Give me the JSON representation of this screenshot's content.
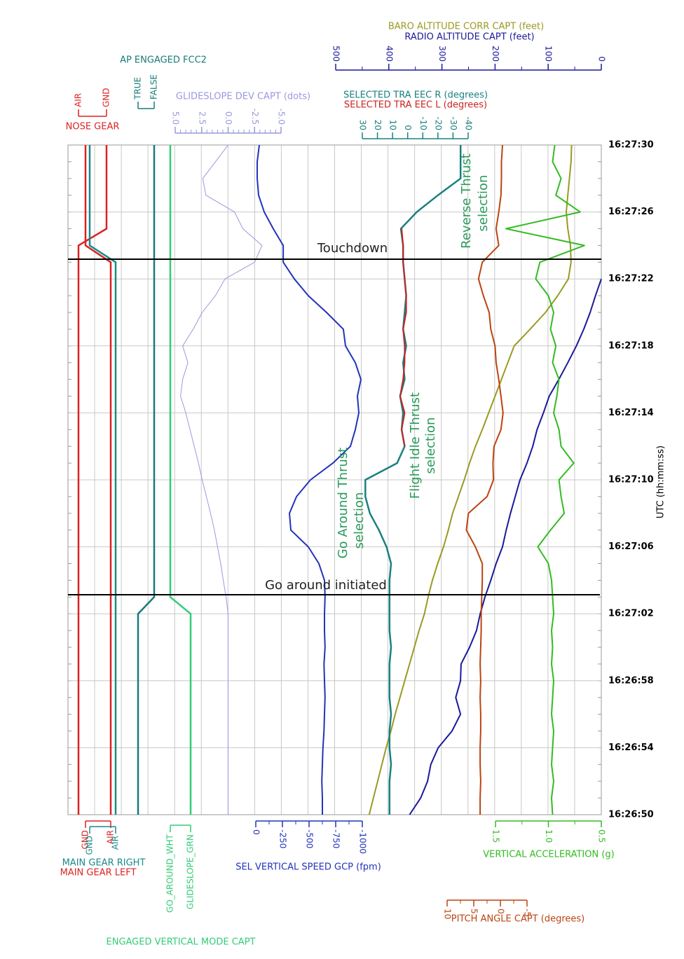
{
  "chart_data": {
    "type": "line",
    "x": [
      "16:26:50",
      "16:26:51",
      "16:26:52",
      "16:26:53",
      "16:26:54",
      "16:26:55",
      "16:26:56",
      "16:26:57",
      "16:26:58",
      "16:26:59",
      "16:27:00",
      "16:27:01",
      "16:27:02",
      "16:27:03",
      "16:27:04",
      "16:27:05",
      "16:27:06",
      "16:27:07",
      "16:27:08",
      "16:27:09",
      "16:27:10",
      "16:27:11",
      "16:27:12",
      "16:27:13",
      "16:27:14",
      "16:27:15",
      "16:27:16",
      "16:27:17",
      "16:27:18",
      "16:27:19",
      "16:27:20",
      "16:27:21",
      "16:27:22",
      "16:27:23",
      "16:27:24",
      "16:27:25",
      "16:27:26",
      "16:27:27",
      "16:27:28",
      "16:27:29",
      "16:27:30"
    ],
    "xlim": [
      "16:26:50",
      "16:27:30"
    ],
    "xticks": [
      "16:26:50",
      "16:26:54",
      "16:26:58",
      "16:27:02",
      "16:27:06",
      "16:27:10",
      "16:27:14",
      "16:27:18",
      "16:27:22",
      "16:27:26",
      "16:27:30"
    ],
    "xlabel": "UTC (hh:mm:ss)",
    "annotations": [
      "Touchdown",
      "Go around initiated",
      [
        "Go Around Thrust",
        "selection"
      ],
      [
        "Flight Idle Thrust",
        "selection"
      ],
      [
        "Reverse Thrust",
        "selection"
      ]
    ],
    "series": [
      {
        "name": "BARO ALTITUDE CORR CAPT (feet)",
        "color": "#9a9a22",
        "values": [
          437,
          429,
          421,
          413,
          405,
          396,
          388,
          379,
          370,
          361,
          352,
          343,
          333,
          326,
          318,
          308,
          297,
          288,
          280,
          269,
          258,
          248,
          237,
          224,
          212,
          200,
          188,
          176,
          164,
          134,
          105,
          82,
          62,
          57,
          58,
          63,
          66,
          63,
          60,
          57,
          56
        ]
      },
      {
        "name": "RADIO ALTITUDE CAPT (feet)",
        "color": "#1a1a99",
        "lim": [
          500,
          0
        ],
        "ticks": [
          500,
          400,
          300,
          200,
          100,
          0
        ],
        "values": [
          361,
          340,
          327,
          321,
          307,
          281,
          265,
          274,
          265,
          264,
          248,
          235,
          228,
          219,
          208,
          198,
          186,
          179,
          171,
          162,
          153,
          140,
          129,
          121,
          109,
          98,
          80,
          63,
          47,
          33,
          21,
          11,
          0,
          null,
          null,
          null,
          null,
          null,
          null,
          null,
          null
        ]
      },
      {
        "name": "SELECTED TRA EEC R (degrees)",
        "color": "#1a8080",
        "lim": [
          30,
          -40
        ],
        "ticks": [
          30,
          20,
          10,
          0,
          -10,
          -20,
          -30,
          -40
        ],
        "values": [
          12,
          12,
          12,
          11,
          12,
          12,
          11,
          12,
          12,
          12,
          11,
          12,
          12,
          12,
          12,
          11,
          14,
          19,
          25,
          28,
          28,
          7,
          2,
          4,
          3,
          5,
          2,
          3,
          1,
          3,
          2,
          1,
          2,
          3,
          3,
          4.5,
          -6,
          -20,
          -35,
          -35,
          -35
        ]
      },
      {
        "name": "SELECTED TRA EEC L (degrees)",
        "color": "#cc2222",
        "values": [
          null,
          null,
          null,
          null,
          null,
          null,
          null,
          null,
          null,
          null,
          null,
          null,
          null,
          null,
          null,
          null,
          null,
          null,
          null,
          null,
          null,
          null,
          2,
          4,
          2,
          5,
          3,
          2,
          2,
          3,
          1,
          1,
          2,
          3,
          3,
          4,
          null,
          null,
          null,
          null,
          null
        ]
      },
      {
        "name": "GLIDESLOPE DEV CAPT (dots)",
        "color": "#9999dd",
        "lim": [
          5,
          -5
        ],
        "ticks": [
          {
            "value": 5,
            "label": "5.0"
          },
          2.5,
          {
            "value": 0,
            "label": "0.0"
          },
          -2.5,
          {
            "value": -5,
            "label": "-5.0"
          }
        ],
        "values": [
          0,
          0,
          0,
          0,
          0,
          0,
          0,
          0,
          0,
          0,
          0,
          0,
          0,
          0.2,
          0.46,
          0.7,
          1,
          1.3,
          1.66,
          2.05,
          2.45,
          2.8,
          3.2,
          3.6,
          4,
          4.5,
          4.3,
          3.8,
          4.3,
          3.3,
          2.45,
          1.2,
          0.3,
          -2.5,
          -3.2,
          -1.4,
          -0.6,
          2.1,
          2.4,
          1.2,
          0
        ]
      },
      {
        "name": "SEL VERTICAL SPEED GCP (fpm)",
        "color": "#2233bb",
        "lim": [
          0,
          -1000
        ],
        "ticks": [
          0,
          -250,
          -500,
          -750,
          -1000
        ],
        "values": [
          -625,
          -625,
          -620,
          -625,
          -630,
          -640,
          -645,
          -650,
          -645,
          -640,
          -650,
          -645,
          -645,
          -650,
          -645,
          -592,
          -493,
          -329,
          -316,
          -382,
          -513,
          -724,
          -888,
          -934,
          -967,
          -954,
          -987,
          -934,
          -842,
          -822,
          -664,
          -493,
          -362,
          -257,
          -257,
          -164,
          -79,
          -26,
          -13,
          -13,
          -33
        ]
      },
      {
        "name": "VERTICAL ACCELERATION (g)",
        "color": "#33bb22",
        "lim": [
          1.5,
          0.5
        ],
        "ticks": [
          1.5,
          {
            "value": 1,
            "label": "1.0"
          },
          0.5
        ],
        "values": [
          0.96,
          0.97,
          0.95,
          0.97,
          0.96,
          0.95,
          0.97,
          0.96,
          0.95,
          0.97,
          0.96,
          0.97,
          0.95,
          0.96,
          0.97,
          1.0,
          1.1,
          0.98,
          0.85,
          0.88,
          0.9,
          0.76,
          0.88,
          0.9,
          0.95,
          0.92,
          0.9,
          0.96,
          0.93,
          0.98,
          0.95,
          1.0,
          1.12,
          1.08,
          0.66,
          1.4,
          0.7,
          0.93,
          0.88,
          0.96,
          0.94
        ]
      },
      {
        "name": "PITCH ANGLE CAPT (degrees)",
        "color": "#bb4411",
        "lim": [
          10,
          -5
        ],
        "ticks": [
          10,
          5,
          0,
          -5
        ],
        "values": [
          3.8,
          3.8,
          3.7,
          3.8,
          3.8,
          3.7,
          3.7,
          3.8,
          3.7,
          3.8,
          3.7,
          3.6,
          3.6,
          3.5,
          3.4,
          3.4,
          4.7,
          6.4,
          6.0,
          2.5,
          1.3,
          1.4,
          1.2,
          -0.1,
          -0.5,
          -0.1,
          0.3,
          0.8,
          1.0,
          1.8,
          2.1,
          3.2,
          4.1,
          3.4,
          0.3,
          0.8,
          0.3,
          -0.1,
          -0.2,
          -0.2,
          -0.4
        ]
      }
    ],
    "discrete": [
      {
        "name": "NOSE GEAR",
        "color": "#dd2222",
        "states": [
          "AIR",
          "GND"
        ],
        "values": [
          "AIR",
          "AIR",
          "AIR",
          "AIR",
          "AIR",
          "AIR",
          "AIR",
          "AIR",
          "AIR",
          "AIR",
          "AIR",
          "AIR",
          "AIR",
          "AIR",
          "AIR",
          "AIR",
          "AIR",
          "AIR",
          "AIR",
          "AIR",
          "AIR",
          "AIR",
          "AIR",
          "AIR",
          "AIR",
          "AIR",
          "AIR",
          "AIR",
          "AIR",
          "AIR",
          "AIR",
          "AIR",
          "AIR",
          "AIR",
          "AIR",
          "GND",
          "GND",
          "GND",
          "GND",
          "GND",
          "GND"
        ]
      },
      {
        "name": "MAIN GEAR LEFT",
        "color": "#dd2222",
        "states": [
          "GND",
          "AIR"
        ],
        "values": [
          "AIR",
          "AIR",
          "AIR",
          "AIR",
          "AIR",
          "AIR",
          "AIR",
          "AIR",
          "AIR",
          "AIR",
          "AIR",
          "AIR",
          "AIR",
          "AIR",
          "AIR",
          "AIR",
          "AIR",
          "AIR",
          "AIR",
          "AIR",
          "AIR",
          "AIR",
          "AIR",
          "AIR",
          "AIR",
          "AIR",
          "AIR",
          "AIR",
          "AIR",
          "AIR",
          "AIR",
          "AIR",
          "AIR",
          "AIR",
          "GND",
          "GND",
          "GND",
          "GND",
          "GND",
          "GND",
          "GND"
        ]
      },
      {
        "name": "MAIN GEAR RIGHT",
        "color": "#1a8a8a",
        "states": [
          "GND",
          "AIR"
        ],
        "values": [
          "AIR",
          "AIR",
          "AIR",
          "AIR",
          "AIR",
          "AIR",
          "AIR",
          "AIR",
          "AIR",
          "AIR",
          "AIR",
          "AIR",
          "AIR",
          "AIR",
          "AIR",
          "AIR",
          "AIR",
          "AIR",
          "AIR",
          "AIR",
          "AIR",
          "AIR",
          "AIR",
          "AIR",
          "AIR",
          "AIR",
          "AIR",
          "AIR",
          "AIR",
          "AIR",
          "AIR",
          "AIR",
          "AIR",
          "AIR",
          "GND",
          "GND",
          "GND",
          "GND",
          "GND",
          "GND",
          "GND"
        ]
      },
      {
        "name": "AP ENGAGED FCC2",
        "color": "#1a7a7a",
        "states": [
          "TRUE",
          "FALSE"
        ],
        "values": [
          "TRUE",
          "TRUE",
          "TRUE",
          "TRUE",
          "TRUE",
          "TRUE",
          "TRUE",
          "TRUE",
          "TRUE",
          "TRUE",
          "TRUE",
          "TRUE",
          "TRUE",
          "FALSE",
          "FALSE",
          "FALSE",
          "FALSE",
          "FALSE",
          "FALSE",
          "FALSE",
          "FALSE",
          "FALSE",
          "FALSE",
          "FALSE",
          "FALSE",
          "FALSE",
          "FALSE",
          "FALSE",
          "FALSE",
          "FALSE",
          "FALSE",
          "FALSE",
          "FALSE",
          "FALSE",
          "FALSE",
          "FALSE",
          "FALSE",
          "FALSE",
          "FALSE",
          "FALSE",
          "FALSE"
        ]
      },
      {
        "name": "ENGAGED VERTICAL MODE CAPT",
        "color": "#33cc77",
        "states": [
          "GO_AROUND_WHT",
          "GLIDESLOPE_GRN"
        ],
        "values": [
          "GLIDESLOPE_GRN",
          "GLIDESLOPE_GRN",
          "GLIDESLOPE_GRN",
          "GLIDESLOPE_GRN",
          "GLIDESLOPE_GRN",
          "GLIDESLOPE_GRN",
          "GLIDESLOPE_GRN",
          "GLIDESLOPE_GRN",
          "GLIDESLOPE_GRN",
          "GLIDESLOPE_GRN",
          "GLIDESLOPE_GRN",
          "GLIDESLOPE_GRN",
          "GLIDESLOPE_GRN",
          "GO_AROUND_WHT",
          "GO_AROUND_WHT",
          "GO_AROUND_WHT",
          "GO_AROUND_WHT",
          "GO_AROUND_WHT",
          "GO_AROUND_WHT",
          "GO_AROUND_WHT",
          "GO_AROUND_WHT",
          "GO_AROUND_WHT",
          "GO_AROUND_WHT",
          "GO_AROUND_WHT",
          "GO_AROUND_WHT",
          "GO_AROUND_WHT",
          "GO_AROUND_WHT",
          "GO_AROUND_WHT",
          "GO_AROUND_WHT",
          "GO_AROUND_WHT",
          "GO_AROUND_WHT",
          "GO_AROUND_WHT",
          "GO_AROUND_WHT",
          "GO_AROUND_WHT",
          "GO_AROUND_WHT",
          "GO_AROUND_WHT",
          "GO_AROUND_WHT",
          "GO_AROUND_WHT",
          "GO_AROUND_WHT",
          "GO_AROUND_WHT",
          "GO_AROUND_WHT"
        ]
      }
    ]
  }
}
